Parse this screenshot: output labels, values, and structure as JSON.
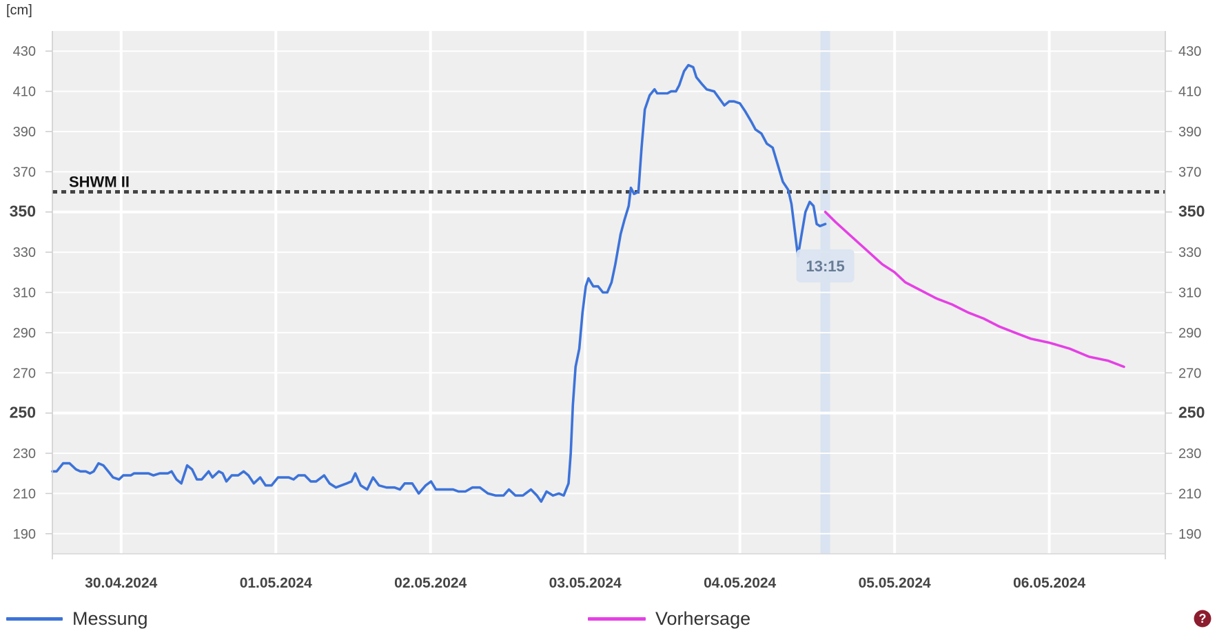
{
  "chart_data": {
    "type": "line",
    "ylabel": "[cm]",
    "xlabel": "",
    "ylim": [
      180,
      440
    ],
    "yticks": [
      190,
      210,
      230,
      250,
      270,
      290,
      310,
      330,
      350,
      370,
      390,
      410,
      430
    ],
    "yticks_bold": [
      250,
      350
    ],
    "mirror_y_axis": true,
    "xlim": [
      "29.04.2024 13:20",
      "06.05.2024 18:00"
    ],
    "xticks": [
      "30.04.2024",
      "01.05.2024",
      "02.05.2024",
      "03.05.2024",
      "04.05.2024",
      "05.05.2024",
      "06.05.2024"
    ],
    "grid": true,
    "legend_position": "bottom",
    "reference_lines": [
      {
        "label": "SHWM II",
        "y": 360,
        "color": "#444444",
        "style": "dotted"
      }
    ],
    "current_time_marker": {
      "x": "04.05.2024 13:15",
      "label": "13:15",
      "color": "#c9dbf2"
    },
    "series": [
      {
        "name": "Messung",
        "color": "#3d73d9",
        "points": [
          [
            "29.04.2024 13:20",
            221
          ],
          [
            "29.04.2024 14:00",
            221
          ],
          [
            "29.04.2024 15:00",
            225
          ],
          [
            "29.04.2024 16:00",
            225
          ],
          [
            "29.04.2024 17:00",
            222
          ],
          [
            "29.04.2024 17:40",
            221
          ],
          [
            "29.04.2024 18:30",
            221
          ],
          [
            "29.04.2024 19:10",
            220
          ],
          [
            "29.04.2024 19:45",
            221
          ],
          [
            "29.04.2024 20:30",
            225
          ],
          [
            "29.04.2024 21:15",
            224
          ],
          [
            "29.04.2024 22:00",
            221
          ],
          [
            "29.04.2024 22:45",
            218
          ],
          [
            "29.04.2024 23:40",
            217
          ],
          [
            "30.04.2024 00:20",
            219
          ],
          [
            "30.04.2024 01:30",
            219
          ],
          [
            "30.04.2024 02:00",
            220
          ],
          [
            "30.04.2024 04:15",
            220
          ],
          [
            "30.04.2024 05:00",
            219
          ],
          [
            "30.04.2024 06:00",
            220
          ],
          [
            "30.04.2024 07:15",
            220
          ],
          [
            "30.04.2024 07:50",
            221
          ],
          [
            "30.04.2024 08:35",
            217
          ],
          [
            "30.04.2024 09:20",
            215
          ],
          [
            "30.04.2024 10:15",
            224
          ],
          [
            "30.04.2024 11:00",
            222
          ],
          [
            "30.04.2024 11:45",
            217
          ],
          [
            "30.04.2024 12:30",
            217
          ],
          [
            "30.04.2024 13:35",
            221
          ],
          [
            "30.04.2024 14:10",
            218
          ],
          [
            "30.04.2024 15:10",
            221
          ],
          [
            "30.04.2024 15:45",
            220
          ],
          [
            "30.04.2024 16:20",
            216
          ],
          [
            "30.04.2024 17:10",
            219
          ],
          [
            "30.04.2024 18:10",
            219
          ],
          [
            "30.04.2024 19:00",
            221
          ],
          [
            "30.04.2024 19:45",
            219
          ],
          [
            "30.04.2024 20:35",
            215
          ],
          [
            "30.04.2024 21:35",
            218
          ],
          [
            "30.04.2024 22:25",
            214
          ],
          [
            "30.04.2024 23:20",
            214
          ],
          [
            "01.05.2024 00:20",
            218
          ],
          [
            "01.05.2024 02:00",
            218
          ],
          [
            "01.05.2024 02:45",
            217
          ],
          [
            "01.05.2024 03:30",
            219
          ],
          [
            "01.05.2024 04:30",
            219
          ],
          [
            "01.05.2024 05:25",
            216
          ],
          [
            "01.05.2024 06:15",
            216
          ],
          [
            "01.05.2024 07:30",
            219
          ],
          [
            "01.05.2024 08:20",
            215
          ],
          [
            "01.05.2024 09:20",
            213
          ],
          [
            "01.05.2024 10:10",
            214
          ],
          [
            "01.05.2024 11:00",
            215
          ],
          [
            "01.05.2024 11:45",
            216
          ],
          [
            "01.05.2024 12:20",
            220
          ],
          [
            "01.05.2024 13:10",
            214
          ],
          [
            "01.05.2024 14:10",
            212
          ],
          [
            "01.05.2024 15:05",
            218
          ],
          [
            "01.05.2024 16:00",
            214
          ],
          [
            "01.05.2024 17:10",
            213
          ],
          [
            "01.05.2024 18:25",
            213
          ],
          [
            "01.05.2024 19:15",
            212
          ],
          [
            "01.05.2024 20:00",
            215
          ],
          [
            "01.05.2024 21:10",
            215
          ],
          [
            "01.05.2024 22:10",
            210
          ],
          [
            "01.05.2024 23:15",
            214
          ],
          [
            "02.05.2024 00:05",
            216
          ],
          [
            "02.05.2024 00:50",
            212
          ],
          [
            "02.05.2024 02:15",
            212
          ],
          [
            "02.05.2024 03:30",
            212
          ],
          [
            "02.05.2024 04:20",
            211
          ],
          [
            "02.05.2024 05:25",
            211
          ],
          [
            "02.05.2024 06:30",
            213
          ],
          [
            "02.05.2024 07:40",
            213
          ],
          [
            "02.05.2024 08:55",
            210
          ],
          [
            "02.05.2024 10:05",
            209
          ],
          [
            "02.05.2024 11:20",
            209
          ],
          [
            "02.05.2024 12:10",
            212
          ],
          [
            "02.05.2024 13:10",
            209
          ],
          [
            "02.05.2024 14:20",
            209
          ],
          [
            "02.05.2024 15:35",
            212
          ],
          [
            "02.05.2024 16:30",
            209
          ],
          [
            "02.05.2024 17:10",
            206
          ],
          [
            "02.05.2024 18:00",
            211
          ],
          [
            "02.05.2024 19:00",
            209
          ],
          [
            "02.05.2024 19:55",
            210
          ],
          [
            "02.05.2024 20:40",
            209
          ],
          [
            "02.05.2024 21:25",
            215
          ],
          [
            "02.05.2024 21:45",
            230
          ],
          [
            "02.05.2024 22:05",
            254
          ],
          [
            "02.05.2024 22:30",
            273
          ],
          [
            "02.05.2024 23:05",
            282
          ],
          [
            "02.05.2024 23:35",
            300
          ],
          [
            "03.05.2024 00:05",
            313
          ],
          [
            "03.05.2024 00:30",
            317
          ],
          [
            "03.05.2024 01:15",
            313
          ],
          [
            "03.05.2024 02:00",
            313
          ],
          [
            "03.05.2024 02:45",
            310
          ],
          [
            "03.05.2024 03:25",
            310
          ],
          [
            "03.05.2024 04:05",
            315
          ],
          [
            "03.05.2024 04:40",
            324
          ],
          [
            "03.05.2024 05:30",
            339
          ],
          [
            "03.05.2024 06:05",
            346
          ],
          [
            "03.05.2024 06:45",
            353
          ],
          [
            "03.05.2024 07:05",
            362
          ],
          [
            "03.05.2024 07:35",
            359
          ],
          [
            "03.05.2024 08:15",
            360
          ],
          [
            "03.05.2024 08:45",
            382
          ],
          [
            "03.05.2024 09:15",
            401
          ],
          [
            "03.05.2024 10:00",
            408
          ],
          [
            "03.05.2024 10:45",
            411
          ],
          [
            "03.05.2024 11:10",
            409
          ],
          [
            "03.05.2024 11:55",
            409
          ],
          [
            "03.05.2024 12:45",
            409
          ],
          [
            "03.05.2024 13:20",
            410
          ],
          [
            "03.05.2024 14:05",
            410
          ],
          [
            "03.05.2024 14:35",
            413
          ],
          [
            "03.05.2024 15:20",
            420
          ],
          [
            "03.05.2024 16:00",
            423
          ],
          [
            "03.05.2024 16:45",
            422
          ],
          [
            "03.05.2024 17:15",
            417
          ],
          [
            "03.05.2024 18:00",
            414
          ],
          [
            "03.05.2024 18:50",
            411
          ],
          [
            "03.05.2024 20:00",
            410
          ],
          [
            "03.05.2024 20:55",
            406
          ],
          [
            "03.05.2024 21:35",
            403
          ],
          [
            "03.05.2024 22:20",
            405
          ],
          [
            "03.05.2024 23:05",
            405
          ],
          [
            "04.05.2024 00:00",
            404
          ],
          [
            "04.05.2024 00:50",
            400
          ],
          [
            "04.05.2024 01:45",
            395
          ],
          [
            "04.05.2024 02:25",
            391
          ],
          [
            "04.05.2024 03:20",
            389
          ],
          [
            "04.05.2024 04:10",
            384
          ],
          [
            "04.05.2024 05:05",
            382
          ],
          [
            "04.05.2024 05:50",
            374
          ],
          [
            "04.05.2024 06:40",
            365
          ],
          [
            "04.05.2024 07:30",
            361
          ],
          [
            "04.05.2024 08:00",
            354
          ],
          [
            "04.05.2024 08:30",
            341
          ],
          [
            "04.05.2024 09:00",
            328
          ],
          [
            "04.05.2024 09:35",
            339
          ],
          [
            "04.05.2024 10:10",
            350
          ],
          [
            "04.05.2024 10:50",
            355
          ],
          [
            "04.05.2024 11:25",
            353
          ],
          [
            "04.05.2024 11:55",
            344
          ],
          [
            "04.05.2024 12:25",
            343
          ],
          [
            "04.05.2024 13:15",
            344
          ]
        ]
      },
      {
        "name": "Vorhersage",
        "color": "#e540e5",
        "points": [
          [
            "04.05.2024 13:15",
            350
          ],
          [
            "04.05.2024 14:50",
            345
          ],
          [
            "04.05.2024 17:15",
            338
          ],
          [
            "04.05.2024 19:40",
            331
          ],
          [
            "04.05.2024 22:05",
            324
          ],
          [
            "05.05.2024 00:00",
            320
          ],
          [
            "05.05.2024 01:40",
            315
          ],
          [
            "05.05.2024 04:05",
            311
          ],
          [
            "05.05.2024 06:30",
            307
          ],
          [
            "05.05.2024 08:55",
            304
          ],
          [
            "05.05.2024 11:25",
            300
          ],
          [
            "05.05.2024 13:50",
            297
          ],
          [
            "05.05.2024 16:15",
            293
          ],
          [
            "05.05.2024 18:40",
            290
          ],
          [
            "05.05.2024 21:05",
            287
          ],
          [
            "06.05.2024 00:00",
            285
          ],
          [
            "06.05.2024 03:10",
            282
          ],
          [
            "06.05.2024 06:10",
            278
          ],
          [
            "06.05.2024 09:10",
            276
          ],
          [
            "06.05.2024 11:35",
            273
          ]
        ]
      }
    ]
  },
  "help": {
    "icon": "question-circle-icon",
    "color": "#8c1d2e"
  }
}
